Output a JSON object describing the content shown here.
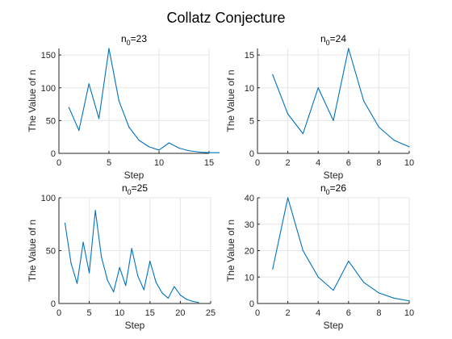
{
  "figure": {
    "title": "Collatz Conjecture",
    "accent_color": "#0072BD"
  },
  "chart_data": [
    {
      "type": "line",
      "title": "n0=23",
      "title_main": "n",
      "title_sub": "0",
      "title_rest": "=23",
      "xlabel": "Step",
      "ylabel": "The Value of n",
      "xlim": [
        0,
        15
      ],
      "ylim": [
        0,
        160
      ],
      "xticks": [
        0,
        5,
        10,
        15
      ],
      "yticks": [
        0,
        50,
        100,
        150
      ],
      "grid": true,
      "x": [
        1,
        2,
        3,
        4,
        5,
        6,
        7,
        8,
        9,
        10,
        11,
        12,
        13,
        14,
        15,
        16
      ],
      "values": [
        70,
        35,
        106,
        53,
        160,
        80,
        40,
        20,
        10,
        5,
        16,
        8,
        4,
        2,
        1,
        1
      ]
    },
    {
      "type": "line",
      "title": "n0=24",
      "title_main": "n",
      "title_sub": "0",
      "title_rest": "=24",
      "xlabel": "Step",
      "ylabel": "The Value of n",
      "xlim": [
        0,
        10
      ],
      "ylim": [
        0,
        16
      ],
      "xticks": [
        0,
        2,
        4,
        6,
        8,
        10
      ],
      "yticks": [
        0,
        5,
        10,
        15
      ],
      "grid": true,
      "x": [
        1,
        2,
        3,
        4,
        5,
        6,
        7,
        8,
        9,
        10
      ],
      "values": [
        12,
        6,
        3,
        10,
        5,
        16,
        8,
        4,
        2,
        1
      ]
    },
    {
      "type": "line",
      "title": "n0=25",
      "title_main": "n",
      "title_sub": "0",
      "title_rest": "=25",
      "xlabel": "Step",
      "ylabel": "The Value of n",
      "xlim": [
        0,
        25
      ],
      "ylim": [
        0,
        100
      ],
      "xticks": [
        0,
        5,
        10,
        15,
        20,
        25
      ],
      "yticks": [
        0,
        50,
        100
      ],
      "grid": true,
      "x": [
        1,
        2,
        3,
        4,
        5,
        6,
        7,
        8,
        9,
        10,
        11,
        12,
        13,
        14,
        15,
        16,
        17,
        18,
        19,
        20,
        21,
        22,
        23
      ],
      "values": [
        76,
        38,
        19,
        58,
        29,
        88,
        44,
        22,
        11,
        34,
        17,
        52,
        26,
        13,
        40,
        20,
        10,
        5,
        16,
        8,
        4,
        2,
        1
      ]
    },
    {
      "type": "line",
      "title": "n0=26",
      "title_main": "n",
      "title_sub": "0",
      "title_rest": "=26",
      "xlabel": "Step",
      "ylabel": "The Value of n",
      "xlim": [
        0,
        10
      ],
      "ylim": [
        0,
        40
      ],
      "xticks": [
        0,
        2,
        4,
        6,
        8,
        10
      ],
      "yticks": [
        0,
        10,
        20,
        30,
        40
      ],
      "grid": true,
      "x": [
        1,
        2,
        3,
        4,
        5,
        6,
        7,
        8,
        9,
        10
      ],
      "values": [
        13,
        40,
        20,
        10,
        5,
        16,
        8,
        4,
        2,
        1
      ]
    }
  ]
}
